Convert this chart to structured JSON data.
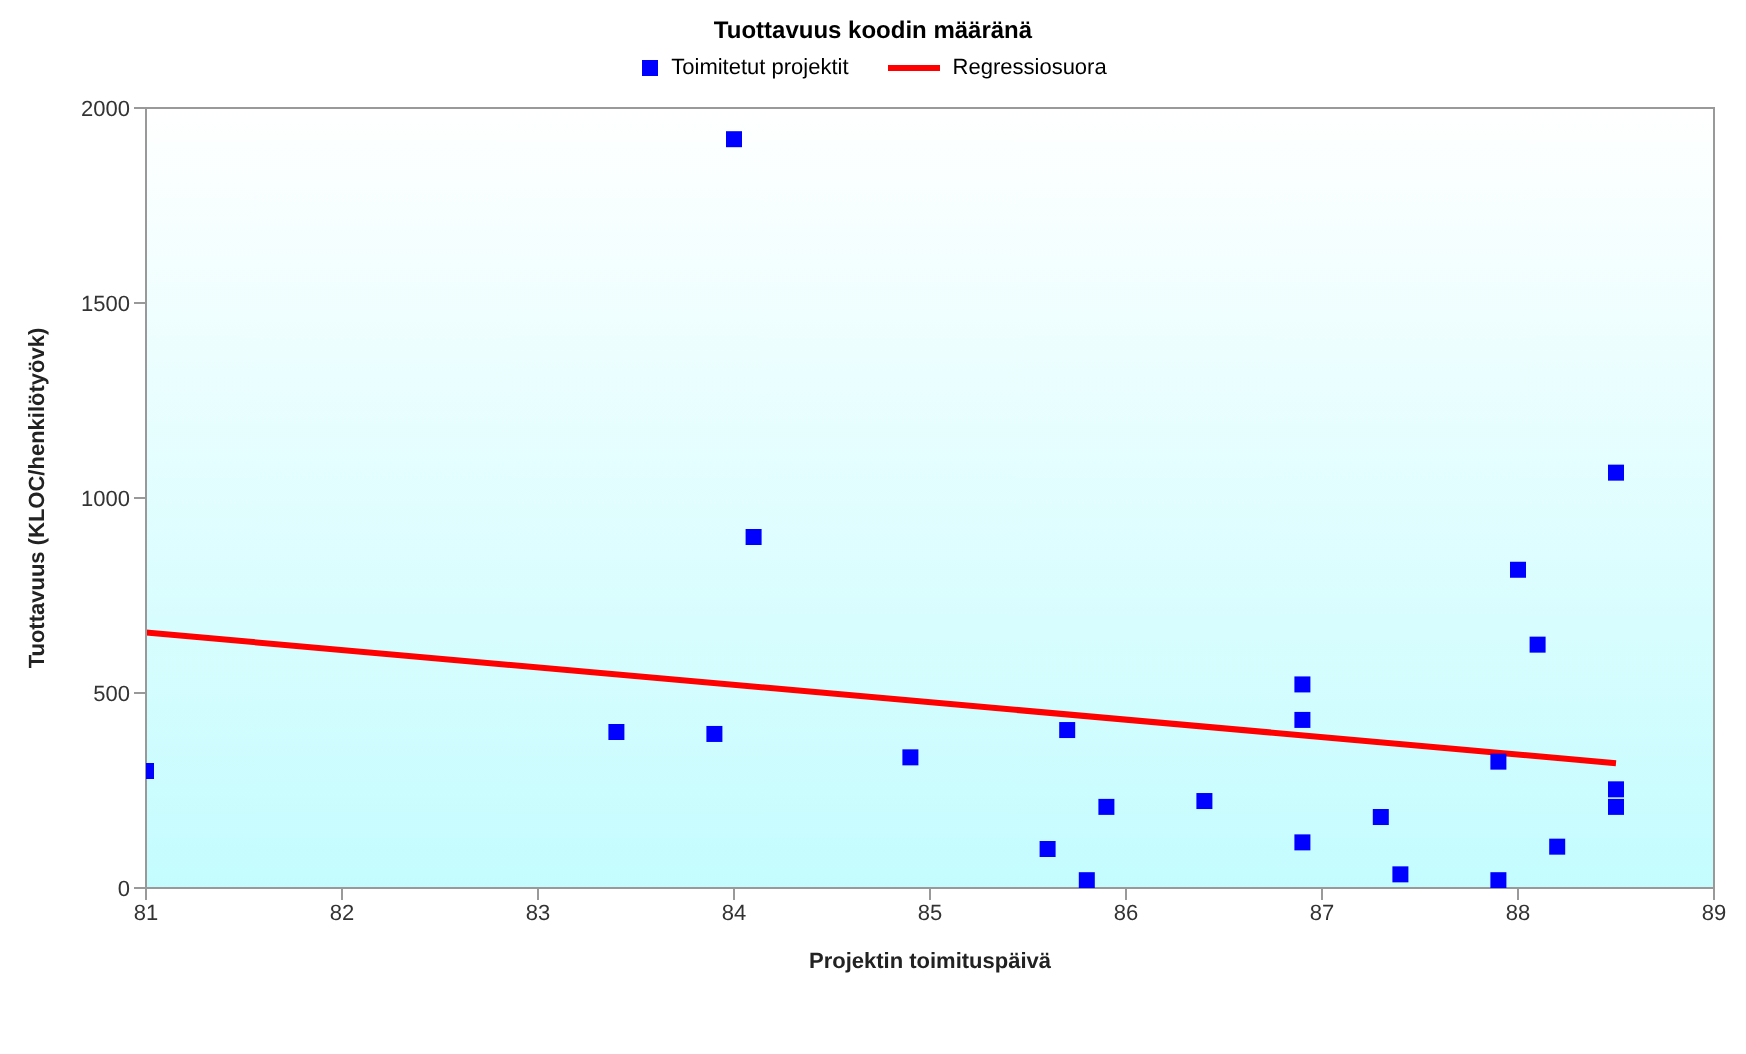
{
  "chart_data": {
    "type": "scatter",
    "title": "Tuottavuus koodin määränä",
    "xlabel": "Projektin toimituspäivä",
    "ylabel": "Tuottavuus (KLOC/henkilötyövk)",
    "series": [
      {
        "name": "Toimitetut projektit",
        "color": "#0000ff",
        "marker": "square",
        "x": [
          81,
          83.4,
          83.9,
          84.0,
          84.1,
          84.9,
          85.6,
          85.7,
          85.8,
          85.9,
          86.4,
          86.9,
          86.9,
          86.9,
          87.3,
          87.4,
          87.9,
          87.9,
          88.0,
          88.1,
          88.2,
          88.5,
          88.5,
          88.5
        ],
        "values": [
          300,
          400,
          395,
          1920,
          900,
          335,
          100,
          405,
          20,
          208,
          223,
          522,
          431,
          117,
          182,
          35,
          324,
          20,
          816,
          624,
          106,
          1065,
          253,
          208
        ]
      },
      {
        "name": "Regressiosuora",
        "type": "line",
        "color": "#ff0000",
        "marker": "none",
        "x": [
          81,
          88.5
        ],
        "values": [
          655,
          320
        ]
      }
    ],
    "xlim": [
      81,
      89
    ],
    "xticks": [
      81,
      82,
      83,
      84,
      85,
      86,
      87,
      88,
      89
    ],
    "ylim": [
      0,
      2000
    ],
    "yticks": [
      0,
      500,
      1000,
      1500,
      2000
    ],
    "grid": false,
    "legend": "top"
  }
}
